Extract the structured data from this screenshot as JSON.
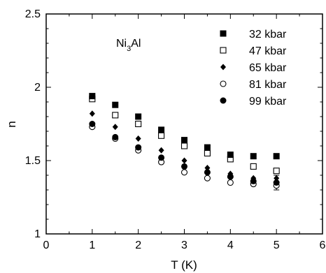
{
  "chart_data": {
    "type": "scatter",
    "xlabel": "T (K)",
    "ylabel": "n",
    "xlim": [
      0,
      6
    ],
    "ylim": [
      1,
      2.5
    ],
    "xticks": [
      "0",
      "1",
      "2",
      "3",
      "4",
      "5",
      "6"
    ],
    "yticks": [
      "1",
      "1.5",
      "2",
      "2.5"
    ],
    "grid": false,
    "legend_position": "top-right",
    "annotation": {
      "main": "Ni",
      "sub": "3",
      "tail": "Al"
    },
    "x": [
      1.0,
      1.5,
      2.0,
      2.5,
      3.0,
      3.5,
      4.0,
      4.5,
      5.0
    ],
    "series": [
      {
        "name": "32 kbar",
        "marker": "filled-square",
        "values": [
          1.94,
          1.88,
          1.8,
          1.71,
          1.64,
          1.59,
          1.54,
          1.53,
          1.53
        ]
      },
      {
        "name": "47 kbar",
        "marker": "open-square",
        "values": [
          1.92,
          1.81,
          1.75,
          1.67,
          1.6,
          1.55,
          1.51,
          1.46,
          1.43
        ]
      },
      {
        "name": "65 kbar",
        "marker": "filled-diamond",
        "values": [
          1.82,
          1.73,
          1.65,
          1.57,
          1.5,
          1.45,
          1.41,
          1.38,
          1.38
        ]
      },
      {
        "name": "81 kbar",
        "marker": "open-circle",
        "values": [
          1.73,
          1.65,
          1.57,
          1.49,
          1.42,
          1.38,
          1.35,
          1.34,
          1.33
        ]
      },
      {
        "name": "99 kbar",
        "marker": "filled-circle",
        "values": [
          1.75,
          1.66,
          1.59,
          1.52,
          1.46,
          1.42,
          1.39,
          1.36,
          1.35
        ]
      }
    ],
    "errorbar": {
      "x": 5.0,
      "low": 1.3,
      "high": 1.4
    }
  }
}
